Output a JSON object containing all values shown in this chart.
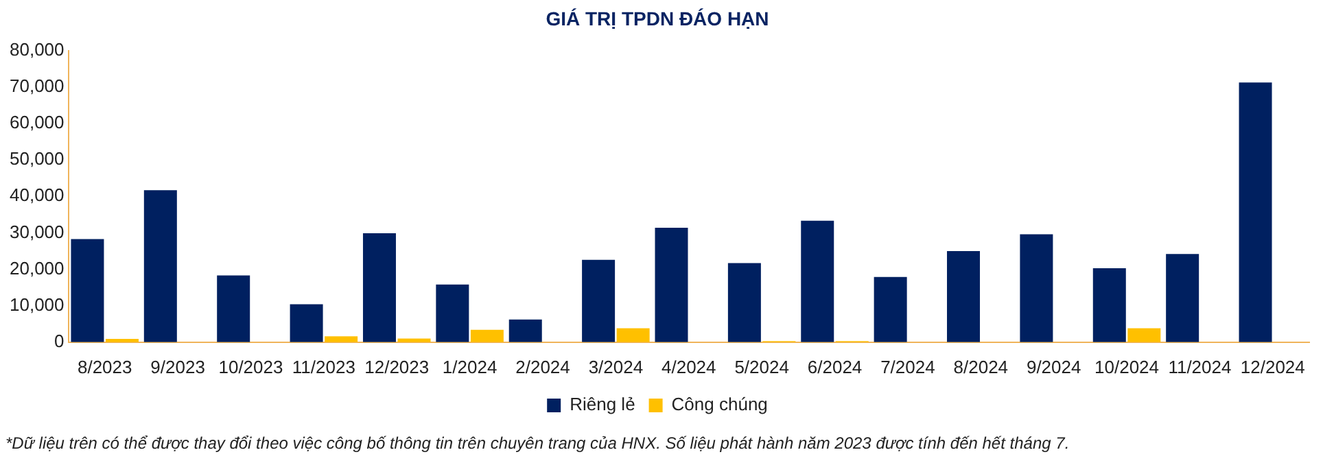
{
  "chart_data": {
    "type": "bar",
    "title": "GIÁ TRỊ TPDN ĐÁO HẠN",
    "categories": [
      "8/2023",
      "9/2023",
      "10/2023",
      "11/2023",
      "12/2023",
      "1/2024",
      "2/2024",
      "3/2024",
      "4/2024",
      "5/2024",
      "6/2024",
      "7/2024",
      "8/2024",
      "9/2024",
      "10/2024",
      "11/2024",
      "12/2024"
    ],
    "series": [
      {
        "name": "Riêng lẻ",
        "color": "#002060",
        "values": [
          28300,
          41700,
          18300,
          10400,
          29900,
          15800,
          6200,
          22600,
          31400,
          21700,
          33300,
          17900,
          25000,
          29600,
          20300,
          24200,
          71200
        ]
      },
      {
        "name": "Công chúng",
        "color": "#ffc000",
        "values": [
          900,
          0,
          0,
          1600,
          1000,
          3400,
          0,
          3800,
          0,
          300,
          300,
          0,
          0,
          0,
          3800,
          0,
          0
        ]
      }
    ],
    "ylim": [
      0,
      80000
    ],
    "yticks": [
      {
        "value": 0,
        "label": "0"
      },
      {
        "value": 10000,
        "label": "10,000"
      },
      {
        "value": 20000,
        "label": "20,000"
      },
      {
        "value": 30000,
        "label": "30,000"
      },
      {
        "value": 40000,
        "label": "40,000"
      },
      {
        "value": 50000,
        "label": "50,000"
      },
      {
        "value": 60000,
        "label": "60,000"
      },
      {
        "value": 70000,
        "label": "70,000"
      },
      {
        "value": 80000,
        "label": "80,000"
      }
    ],
    "grid": false,
    "legend": "bottom",
    "annotations": [
      "*Dữ liệu trên có thể được thay đổi theo việc công bố thông tin trên chuyên trang của HNX. Số liệu phát hành năm 2023 được tính đến hết tháng 7."
    ]
  }
}
